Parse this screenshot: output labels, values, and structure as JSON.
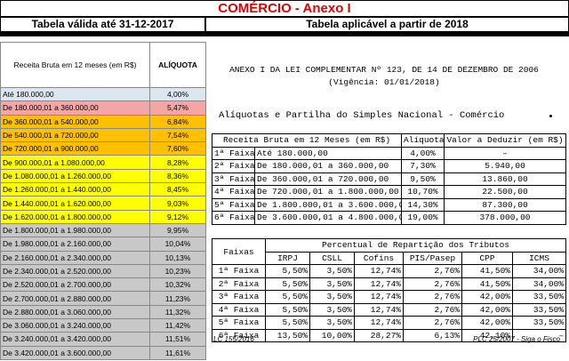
{
  "title": "COMÉRCIO - Anexo I",
  "left_header": "Tabela válida até 31-12-2017",
  "right_header": "Tabela aplicável a partir de 2018",
  "left_table": {
    "columns": [
      "Receita Bruta em 12 meses (em R$)",
      "ALÍQUOTA"
    ],
    "rows": [
      [
        "Até 180.000,00",
        "4,00%"
      ],
      [
        "De 180.000,01 a 360.000,00",
        "5,47%"
      ],
      [
        "De 360.000,01 a 540.000,00",
        "6,84%"
      ],
      [
        "De 540.000,01 a 720.000,00",
        "7,54%"
      ],
      [
        "De 720.000,01 a 900.000,00",
        "7,60%"
      ],
      [
        "De 900.000,01 a 1.080.000,00",
        "8,28%"
      ],
      [
        "De 1.080.000,01 a 1.260.000,00",
        "8,36%"
      ],
      [
        "De 1.260.000,01 a 1.440.000,00",
        "8,45%"
      ],
      [
        "De 1.440.000,01 a 1.620.000,00",
        "9,03%"
      ],
      [
        "De 1.620.000,01 a 1.800.000,00",
        "9,12%"
      ],
      [
        "De 1.800.000,01 a 1.980.000,00",
        "9,95%"
      ],
      [
        "De 1.980.000,01 a 2.160.000,00",
        "10,04%"
      ],
      [
        "De 2.160.000,01 a 2.340.000,00",
        "10,13%"
      ],
      [
        "De 2.340.000,01 a 2.520.000,00",
        "10,23%"
      ],
      [
        "De 2.520.000,01 a 2.700.000,00",
        "10,32%"
      ],
      [
        "De 2.700.000,01 a 2.880.000,00",
        "11,23%"
      ],
      [
        "De 2.880.000,01 a 3.060.000,00",
        "11,32%"
      ],
      [
        "De 3.060.000,01 a 3.240.000,00",
        "11,42%"
      ],
      [
        "De 3.240.000,01 a 3.420.000,00",
        "11,51%"
      ],
      [
        "De 3.420.000,01 a 3.600.000,00",
        "11,61%"
      ]
    ]
  },
  "law_title": "ANEXO I DA LEI COMPLEMENTAR Nº 123, DE 14 DE DEZEMBRO DE 2006",
  "law_validity": "(Vigência: 01/01/2018)",
  "section_title": "Alíquotas e Partilha do Simples Nacional - Comércio",
  "table1": {
    "columns": [
      "Receita Bruta em 12 Meses (em R$)",
      "Alíquota",
      "Valor a Deduzir (em R$)"
    ],
    "rows": [
      [
        "1ª Faixa",
        "Até 180.000,00",
        "4,00%",
        "–"
      ],
      [
        "2ª Faixa",
        "De 180.000,01 a 360.000,00",
        "7,30%",
        "5.940,00"
      ],
      [
        "3ª Faixa",
        "De 360.000,01 a 720.000,00",
        "9,50%",
        "13.860,00"
      ],
      [
        "4ª Faixa",
        "De 720.000,01 a 1.800.000,00",
        "10,70%",
        "22.500,00"
      ],
      [
        "5ª Faixa",
        "De 1.800.000,01 a 3.600.000,00",
        "14,30%",
        "87.300,00"
      ],
      [
        "6ª Faixa",
        "De 3.600.000,01 a 4.800.000,00",
        "19,00%",
        "378.000,00"
      ]
    ]
  },
  "table2": {
    "faixas_label": "Faixas",
    "group_label": "Percentual de Repartição dos Tributos",
    "columns": [
      "IRPJ",
      "CSLL",
      "Cofins",
      "PIS/Pasep",
      "CPP",
      "ICMS"
    ],
    "rows": [
      [
        "1ª Faixa",
        "5,50%",
        "3,50%",
        "12,74%",
        "2,76%",
        "41,50%",
        "34,00%"
      ],
      [
        "2ª Faixa",
        "5,50%",
        "3,50%",
        "12,74%",
        "2,76%",
        "41,50%",
        "34,00%"
      ],
      [
        "3ª Faixa",
        "5,50%",
        "3,50%",
        "12,74%",
        "2,76%",
        "42,00%",
        "33,50%"
      ],
      [
        "4ª Faixa",
        "5,50%",
        "3,50%",
        "12,74%",
        "2,76%",
        "42,00%",
        "33,50%"
      ],
      [
        "5ª Faixa",
        "5,50%",
        "3,50%",
        "12,74%",
        "2,76%",
        "42,00%",
        "33,50%"
      ],
      [
        "6ª Faixa",
        "13,50%",
        "10,00%",
        "28,27%",
        "6,13%",
        "42,10%",
        "–"
      ]
    ]
  },
  "footer_left": "LC 155/2016",
  "footer_right": "PLC 25/2007 - Siga o Fisco"
}
